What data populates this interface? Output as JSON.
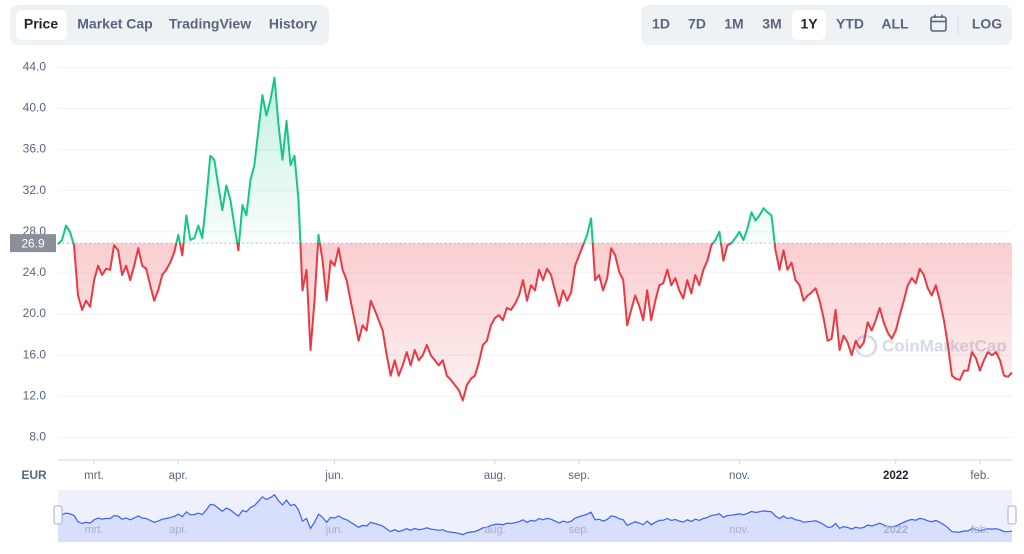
{
  "tabs": {
    "items": [
      "Price",
      "Market Cap",
      "TradingView",
      "History"
    ],
    "active": 0
  },
  "ranges": {
    "items": [
      "1D",
      "7D",
      "1M",
      "3M",
      "1Y",
      "YTD",
      "ALL"
    ],
    "active": 4
  },
  "log_label": "LOG",
  "currency": "EUR",
  "watermark": "CoinMarketCap",
  "chart_data": {
    "type": "line",
    "values": [
      26.8,
      27.2,
      28.6,
      28.0,
      26.7,
      21.8,
      20.4,
      21.3,
      20.7,
      23.3,
      24.7,
      23.8,
      24.4,
      24.3,
      26.7,
      26.2,
      23.8,
      24.7,
      23.3,
      24.7,
      26.4,
      24.7,
      24.4,
      22.8,
      21.3,
      22.3,
      23.8,
      24.3,
      25.0,
      26.0,
      27.7,
      25.7,
      29.6,
      27.2,
      27.4,
      28.6,
      27.4,
      31.1,
      35.4,
      35.0,
      32.5,
      30.1,
      32.5,
      31.1,
      28.6,
      26.2,
      30.6,
      29.6,
      33.0,
      34.5,
      37.9,
      41.3,
      39.3,
      40.8,
      43.0,
      38.4,
      35.0,
      38.8,
      34.5,
      35.4,
      31.1,
      22.3,
      24.3,
      16.5,
      21.3,
      27.7,
      25.2,
      21.3,
      25.2,
      24.7,
      26.4,
      24.3,
      23.3,
      21.3,
      19.4,
      17.4,
      18.9,
      18.4,
      21.3,
      20.4,
      19.4,
      18.4,
      16.0,
      14.0,
      15.5,
      14.0,
      15.0,
      16.3,
      15.0,
      16.5,
      15.5,
      16.0,
      17.0,
      16.0,
      15.5,
      15.0,
      15.5,
      14.0,
      13.6,
      13.1,
      12.6,
      11.6,
      13.1,
      13.7,
      14.0,
      15.3,
      17.0,
      17.4,
      18.9,
      19.6,
      19.9,
      19.4,
      20.6,
      20.4,
      21.0,
      21.8,
      23.3,
      21.3,
      22.8,
      22.3,
      24.3,
      23.3,
      24.4,
      23.8,
      22.3,
      20.8,
      22.3,
      21.3,
      22.1,
      24.7,
      25.7,
      26.7,
      27.7,
      29.3,
      23.3,
      23.8,
      22.3,
      23.5,
      26.4,
      25.7,
      24.1,
      23.3,
      18.9,
      20.4,
      21.8,
      20.8,
      19.4,
      22.3,
      19.4,
      21.3,
      22.8,
      23.0,
      24.3,
      22.8,
      23.5,
      22.3,
      21.5,
      23.3,
      22.0,
      23.8,
      22.8,
      24.3,
      25.2,
      26.7,
      27.2,
      28.0,
      25.2,
      26.7,
      26.9,
      27.4,
      28.0,
      27.2,
      28.3,
      29.9,
      29.1,
      29.6,
      30.3,
      29.9,
      29.6,
      26.2,
      24.3,
      26.2,
      24.3,
      25.0,
      23.3,
      22.8,
      21.3,
      21.8,
      22.1,
      22.5,
      21.3,
      19.6,
      17.4,
      17.6,
      20.4,
      16.5,
      17.9,
      17.2,
      16.0,
      17.4,
      16.7,
      17.2,
      19.2,
      18.4,
      19.4,
      20.6,
      19.2,
      18.2,
      17.6,
      18.4,
      19.9,
      21.3,
      22.8,
      23.5,
      23.0,
      24.4,
      23.8,
      22.5,
      21.8,
      22.8,
      21.3,
      19.4,
      17.0,
      14.0,
      13.7,
      13.6,
      14.5,
      14.5,
      16.3,
      15.7,
      14.5,
      15.5,
      16.3,
      16.0,
      16.3,
      15.5,
      14.0,
      13.9,
      14.3
    ],
    "categories": [
      null,
      null,
      null,
      null,
      null,
      null,
      null,
      null,
      null,
      "mrt.",
      null,
      null,
      null,
      null,
      null,
      null,
      null,
      null,
      null,
      null,
      null,
      null,
      null,
      null,
      null,
      null,
      null,
      null,
      null,
      null,
      "apr.",
      null,
      null,
      null,
      null,
      null,
      null,
      null,
      null,
      null,
      null,
      null,
      null,
      null,
      null,
      null,
      null,
      null,
      null,
      null,
      null,
      null,
      null,
      null,
      null,
      null,
      null,
      null,
      null,
      null,
      null,
      null,
      null,
      null,
      null,
      null,
      null,
      null,
      null,
      "jun.",
      null,
      null,
      null,
      null,
      null,
      null,
      null,
      null,
      null,
      null,
      null,
      null,
      null,
      null,
      null,
      null,
      null,
      null,
      null,
      null,
      null,
      null,
      null,
      null,
      null,
      null,
      null,
      null,
      null,
      null,
      null,
      null,
      null,
      null,
      null,
      null,
      null,
      null,
      null,
      "aug.",
      null,
      null,
      null,
      null,
      null,
      null,
      null,
      null,
      null,
      null,
      null,
      null,
      null,
      null,
      null,
      null,
      null,
      null,
      null,
      null,
      "sep.",
      null,
      null,
      null,
      null,
      null,
      null,
      null,
      null,
      null,
      null,
      null,
      null,
      null,
      null,
      null,
      null,
      null,
      null,
      null,
      null,
      null,
      null,
      null,
      null,
      null,
      null,
      null,
      null,
      null,
      null,
      null,
      null,
      null,
      null,
      null,
      null,
      null,
      null,
      null,
      "nov.",
      null,
      null,
      null,
      null,
      null,
      null,
      null,
      null,
      null,
      null,
      null,
      null,
      null,
      null,
      null,
      null,
      null,
      null,
      null,
      null,
      null,
      null,
      null,
      null,
      null,
      null,
      null,
      null,
      null,
      null,
      null,
      null,
      null,
      null,
      null,
      null,
      null,
      null,
      "2022",
      null,
      null,
      null,
      null,
      null,
      null,
      null,
      null,
      null,
      null,
      null,
      null,
      null,
      null,
      null,
      null,
      null,
      null,
      null,
      null,
      "feb.",
      null,
      null,
      null,
      null,
      null,
      null,
      null,
      null
    ],
    "baseline": 26.9,
    "ylim": [
      5.8,
      45.2
    ],
    "yticks": [
      {
        "value": 8,
        "label": "8.0"
      },
      {
        "value": 12,
        "label": "12.0"
      },
      {
        "value": 16,
        "label": "16.0"
      },
      {
        "value": 20,
        "label": "20.0"
      },
      {
        "value": 24,
        "label": "24.0"
      },
      {
        "value": 28,
        "label": "28.0"
      },
      {
        "value": 32,
        "label": "32.0"
      },
      {
        "value": 36,
        "label": "36.0"
      },
      {
        "value": 40,
        "label": "40.0"
      },
      {
        "value": 44,
        "label": "44.0"
      }
    ],
    "grid": true,
    "colors": {
      "above": "#16c784",
      "below": "#ea3943",
      "navigator": "#3861fb"
    }
  }
}
